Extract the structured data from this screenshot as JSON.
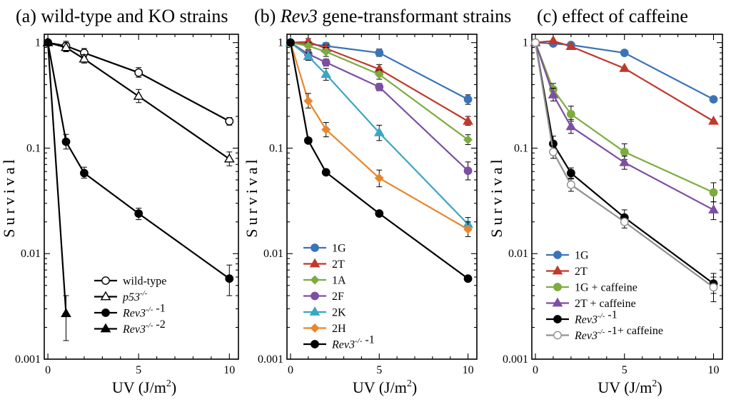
{
  "figure": {
    "panels": [
      {
        "tag": "(a) ",
        "title_italic": "",
        "title": "wild-type and KO strains"
      },
      {
        "tag": "(b) ",
        "title_italic": "Rev3",
        "title": " gene-transformant strains"
      },
      {
        "tag": "(c) ",
        "title_italic": "",
        "title": "effect of caffeine"
      }
    ]
  },
  "chart_data": [
    {
      "type": "line",
      "title": "(a) wild-type and KO strains",
      "xlabel": "UV (J/m2)",
      "ylabel": "Survival",
      "yscale": "log",
      "ylim": [
        0.001,
        1.2
      ],
      "xlim": [
        -0.2,
        10.5
      ],
      "xticks": [
        "0",
        "5",
        "10"
      ],
      "yticks": [
        "1",
        "0.1",
        "0.01",
        "0.001"
      ],
      "legend_position": "bottom-right",
      "series": [
        {
          "name": "wild-type",
          "name_parts": [
            [
              "wild-type",
              false
            ]
          ],
          "color": "#000000",
          "marker": "circle",
          "fill": "open",
          "x": [
            0,
            1,
            2,
            5,
            10
          ],
          "y": [
            1.0,
            0.93,
            0.8,
            0.52,
            0.18
          ],
          "err": [
            [
              0.95,
              1.05
            ],
            [
              0.83,
              1.03
            ],
            [
              0.73,
              0.88
            ],
            [
              0.47,
              0.58
            ],
            [
              0.165,
              0.195
            ]
          ]
        },
        {
          "name": "p53-/-",
          "name_parts": [
            [
              "p53",
              true
            ],
            [
              "-/-",
              "sup-it"
            ]
          ],
          "color": "#000000",
          "marker": "triangle",
          "fill": "open",
          "x": [
            0,
            1,
            2,
            5,
            10
          ],
          "y": [
            1.0,
            0.9,
            0.7,
            0.31,
            0.079
          ],
          "err": [
            [
              0.95,
              1.05
            ],
            [
              0.82,
              1.0
            ],
            [
              0.64,
              0.77
            ],
            [
              0.27,
              0.36
            ],
            [
              0.068,
              0.092
            ]
          ]
        },
        {
          "name": "Rev3-/- -1",
          "name_parts": [
            [
              "Rev3",
              true
            ],
            [
              "-/-",
              "sup-it"
            ],
            [
              " -1",
              false
            ]
          ],
          "color": "#000000",
          "marker": "circle",
          "fill": "filled",
          "x": [
            0,
            1,
            2,
            5,
            10
          ],
          "y": [
            1.0,
            0.115,
            0.058,
            0.024,
            0.0058
          ],
          "err": [
            [
              0.95,
              1.05
            ],
            [
              0.098,
              0.135
            ],
            [
              0.052,
              0.066
            ],
            [
              0.021,
              0.027
            ],
            [
              0.004,
              0.0078
            ]
          ]
        },
        {
          "name": "Rev3-/- -2",
          "name_parts": [
            [
              "Rev3",
              true
            ],
            [
              "-/-",
              "sup-it"
            ],
            [
              " -2",
              false
            ]
          ],
          "color": "#000000",
          "marker": "triangle",
          "fill": "filled",
          "x": [
            0,
            1
          ],
          "y": [
            1.0,
            0.0027
          ],
          "err": [
            null,
            [
              0.0015,
              0.004
            ]
          ]
        }
      ]
    },
    {
      "type": "line",
      "title": "(b) Rev3 gene-transformant strains",
      "xlabel": "UV (J/m2)",
      "ylabel": "Survival",
      "yscale": "log",
      "ylim": [
        0.001,
        1.2
      ],
      "xlim": [
        -0.2,
        10.5
      ],
      "xticks": [
        "0",
        "5",
        "10"
      ],
      "yticks": [
        "1",
        "0.1",
        "0.01",
        "0.001"
      ],
      "legend_position": "bottom-left",
      "series": [
        {
          "name": "1G",
          "name_parts": [
            [
              "1G",
              false
            ]
          ],
          "color": "#3a74b8",
          "marker": "circle",
          "fill": "filled",
          "x": [
            0,
            1,
            2,
            5,
            10
          ],
          "y": [
            1.0,
            0.97,
            0.93,
            0.8,
            0.29
          ],
          "err": [
            [
              0.95,
              1.05
            ],
            null,
            [
              0.86,
              1.0
            ],
            [
              0.74,
              0.87
            ],
            [
              0.26,
              0.32
            ]
          ]
        },
        {
          "name": "2T",
          "name_parts": [
            [
              "2T",
              false
            ]
          ],
          "color": "#c0392b",
          "marker": "triangle",
          "fill": "filled",
          "x": [
            0,
            1,
            2,
            5,
            10
          ],
          "y": [
            1.0,
            1.02,
            0.88,
            0.56,
            0.18
          ],
          "err": [
            [
              0.95,
              1.05
            ],
            [
              0.95,
              1.09
            ],
            [
              0.82,
              0.95
            ],
            [
              0.51,
              0.62
            ],
            [
              0.165,
              0.2
            ]
          ]
        },
        {
          "name": "1A",
          "name_parts": [
            [
              "1A",
              false
            ]
          ],
          "color": "#7cac3f",
          "marker": "diamond",
          "fill": "filled",
          "x": [
            0,
            1,
            2,
            5,
            10
          ],
          "y": [
            1.0,
            0.93,
            0.82,
            0.5,
            0.12
          ],
          "err": [
            [
              0.95,
              1.05
            ],
            [
              0.86,
              1.0
            ],
            [
              0.74,
              0.9
            ],
            [
              0.45,
              0.55
            ],
            [
              0.108,
              0.134
            ]
          ]
        },
        {
          "name": "2F",
          "name_parts": [
            [
              "2F",
              false
            ]
          ],
          "color": "#7d4fa3",
          "marker": "circle",
          "fill": "filled",
          "x": [
            0,
            1,
            2,
            5,
            10
          ],
          "y": [
            1.0,
            0.78,
            0.65,
            0.38,
            0.061
          ],
          "err": [
            [
              0.95,
              1.05
            ],
            [
              0.72,
              0.84
            ],
            [
              0.6,
              0.7
            ],
            [
              0.35,
              0.41
            ],
            [
              0.05,
              0.074
            ]
          ]
        },
        {
          "name": "2K",
          "name_parts": [
            [
              "2K",
              false
            ]
          ],
          "color": "#3aa6c4",
          "marker": "triangle",
          "fill": "filled",
          "x": [
            0,
            1,
            2,
            5,
            10
          ],
          "y": [
            1.0,
            0.74,
            0.5,
            0.14,
            0.019
          ],
          "err": [
            [
              0.95,
              1.05
            ],
            [
              0.68,
              0.8
            ],
            [
              0.44,
              0.57
            ],
            [
              0.118,
              0.165
            ],
            [
              0.0165,
              0.022
            ]
          ]
        },
        {
          "name": "2H",
          "name_parts": [
            [
              "2H",
              false
            ]
          ],
          "color": "#e8862c",
          "marker": "diamond",
          "fill": "filled",
          "x": [
            0,
            1,
            2,
            5,
            10
          ],
          "y": [
            1.0,
            0.28,
            0.15,
            0.052,
            0.017
          ],
          "err": [
            [
              0.95,
              1.05
            ],
            [
              0.24,
              0.33
            ],
            [
              0.128,
              0.175
            ],
            [
              0.043,
              0.062
            ],
            [
              0.0145,
              0.02
            ]
          ]
        },
        {
          "name": "Rev3-/- -1",
          "name_parts": [
            [
              "Rev3",
              true
            ],
            [
              "-/-",
              "sup-it"
            ],
            [
              " -1",
              false
            ]
          ],
          "color": "#000000",
          "marker": "circle",
          "fill": "filled",
          "x": [
            0,
            1,
            2,
            5,
            10
          ],
          "y": [
            1.0,
            0.118,
            0.059,
            0.024,
            0.0058
          ],
          "err": null
        }
      ]
    },
    {
      "type": "line",
      "title": "(c) effect of caffeine",
      "xlabel": "UV (J/m2)",
      "ylabel": "Survival",
      "yscale": "log",
      "ylim": [
        0.001,
        1.2
      ],
      "xlim": [
        -0.2,
        10.5
      ],
      "xticks": [
        "0",
        "5",
        "10"
      ],
      "yticks": [
        "1",
        "0.1",
        "0.01",
        "0.001"
      ],
      "legend_position": "bottom-left",
      "series": [
        {
          "name": "1G",
          "name_parts": [
            [
              "1G",
              false
            ]
          ],
          "color": "#3a74b8",
          "marker": "circle",
          "fill": "filled",
          "x": [
            0,
            1,
            2,
            5,
            10
          ],
          "y": [
            1.0,
            0.98,
            0.95,
            0.8,
            0.29
          ],
          "err": null
        },
        {
          "name": "2T",
          "name_parts": [
            [
              "2T",
              false
            ]
          ],
          "color": "#c0392b",
          "marker": "triangle",
          "fill": "filled",
          "x": [
            0,
            1,
            2,
            5,
            10
          ],
          "y": [
            1.0,
            1.04,
            0.92,
            0.57,
            0.18
          ],
          "err": null
        },
        {
          "name": "1G + caffeine",
          "name_parts": [
            [
              "1G + caffeine",
              false
            ]
          ],
          "color": "#7cac3f",
          "marker": "circle",
          "fill": "filled",
          "x": [
            0,
            1,
            2,
            5,
            10
          ],
          "y": [
            1.0,
            0.36,
            0.21,
            0.092,
            0.038
          ],
          "err": [
            [
              0.95,
              1.05
            ],
            [
              0.32,
              0.41
            ],
            [
              0.18,
              0.25
            ],
            [
              0.078,
              0.11
            ],
            [
              0.031,
              0.047
            ]
          ]
        },
        {
          "name": "2T + caffeine",
          "name_parts": [
            [
              "2T + caffeine",
              false
            ]
          ],
          "color": "#7d4fa3",
          "marker": "triangle",
          "fill": "filled",
          "x": [
            0,
            1,
            2,
            5,
            10
          ],
          "y": [
            1.0,
            0.32,
            0.16,
            0.073,
            0.026
          ],
          "err": [
            [
              0.95,
              1.05
            ],
            [
              0.28,
              0.37
            ],
            [
              0.138,
              0.187
            ],
            [
              0.063,
              0.084
            ],
            [
              0.021,
              0.031
            ]
          ]
        },
        {
          "name": "Rev3-/- -1",
          "name_parts": [
            [
              "Rev3",
              true
            ],
            [
              "-/-",
              "sup-it"
            ],
            [
              " -1",
              false
            ]
          ],
          "color": "#000000",
          "marker": "circle",
          "fill": "filled",
          "x": [
            0,
            1,
            2,
            5,
            10
          ],
          "y": [
            1.0,
            0.11,
            0.058,
            0.022,
            0.0052
          ],
          "err": [
            [
              0.95,
              1.05
            ],
            [
              0.094,
              0.13
            ],
            [
              0.052,
              0.065
            ],
            [
              0.019,
              0.026
            ],
            [
              0.0042,
              0.0065
            ]
          ]
        },
        {
          "name": "Rev3-/- -1+ caffeine",
          "name_parts": [
            [
              "Rev3",
              true
            ],
            [
              "-/-",
              "sup-it"
            ],
            [
              " -1+ caffeine",
              false
            ]
          ],
          "color": "#909090",
          "marker": "circle",
          "fill": "open",
          "x": [
            0,
            1,
            2,
            5,
            10
          ],
          "y": [
            1.0,
            0.092,
            0.045,
            0.02,
            0.0048
          ],
          "err": [
            [
              0.95,
              1.05
            ],
            [
              0.08,
              0.105
            ],
            [
              0.039,
              0.051
            ],
            [
              0.0175,
              0.0225
            ],
            [
              0.0035,
              0.006
            ]
          ]
        }
      ]
    }
  ]
}
